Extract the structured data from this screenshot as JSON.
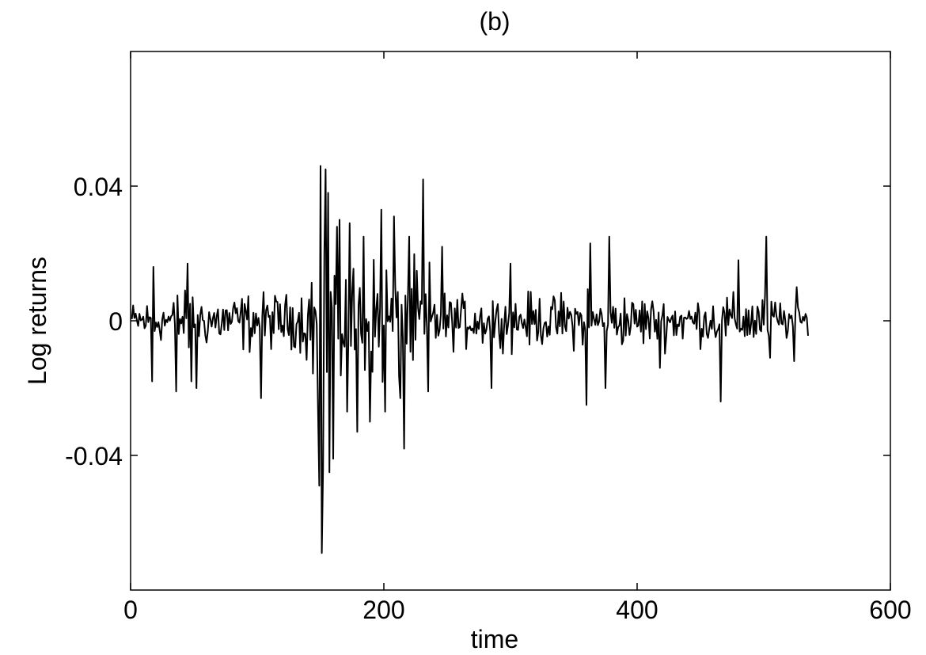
{
  "chart_data": {
    "type": "line",
    "title": "(b)",
    "xlabel": "time",
    "ylabel": "Log returns",
    "xlim": [
      0,
      600
    ],
    "ylim": [
      -0.08,
      0.08
    ],
    "xticks": [
      0,
      200,
      400,
      600
    ],
    "xtick_labels": [
      "0",
      "200",
      "400",
      "600"
    ],
    "yticks": [
      -0.04,
      0,
      0.04
    ],
    "ytick_labels": [
      "-0.04",
      "0",
      "0.04"
    ],
    "grid": false,
    "line_color": "#000000",
    "series": [
      {
        "x_start": 1,
        "x_step": 1,
        "envelope": [
          [
            0,
            0.008
          ],
          [
            50,
            0.012
          ],
          [
            100,
            0.012
          ],
          [
            135,
            0.012
          ],
          [
            145,
            0.03
          ],
          [
            150,
            0.045
          ],
          [
            165,
            0.03
          ],
          [
            200,
            0.024
          ],
          [
            235,
            0.022
          ],
          [
            245,
            0.012
          ],
          [
            300,
            0.01
          ],
          [
            350,
            0.012
          ],
          [
            400,
            0.011
          ],
          [
            450,
            0.01
          ],
          [
            500,
            0.012
          ],
          [
            520,
            0.008
          ],
          [
            535,
            0.005
          ]
        ],
        "spikes": [
          [
            17,
            -0.018
          ],
          [
            18,
            0.016
          ],
          [
            36,
            -0.021
          ],
          [
            45,
            0.017
          ],
          [
            48,
            -0.018
          ],
          [
            52,
            -0.02
          ],
          [
            103,
            -0.023
          ],
          [
            148,
            -0.026
          ],
          [
            149,
            -0.049
          ],
          [
            150,
            0.046
          ],
          [
            151,
            -0.069
          ],
          [
            152,
            -0.044
          ],
          [
            154,
            0.045
          ],
          [
            156,
            0.038
          ],
          [
            157,
            -0.045
          ],
          [
            160,
            -0.041
          ],
          [
            165,
            0.03
          ],
          [
            171,
            -0.027
          ],
          [
            173,
            0.029
          ],
          [
            179,
            -0.033
          ],
          [
            184,
            0.025
          ],
          [
            189,
            -0.03
          ],
          [
            198,
            0.033
          ],
          [
            201,
            -0.027
          ],
          [
            208,
            0.031
          ],
          [
            213,
            -0.023
          ],
          [
            216,
            -0.038
          ],
          [
            220,
            0.025
          ],
          [
            231,
            0.042
          ],
          [
            235,
            -0.021
          ],
          [
            246,
            0.022
          ],
          [
            285,
            -0.02
          ],
          [
            300,
            0.017
          ],
          [
            360,
            -0.025
          ],
          [
            363,
            0.023
          ],
          [
            375,
            -0.02
          ],
          [
            378,
            0.025
          ],
          [
            418,
            -0.014
          ],
          [
            466,
            -0.024
          ],
          [
            480,
            0.018
          ],
          [
            502,
            0.025
          ],
          [
            505,
            -0.011
          ],
          [
            524,
            -0.012
          ],
          [
            526,
            0.01
          ]
        ],
        "seed": 12345,
        "n_points": 535
      }
    ]
  }
}
